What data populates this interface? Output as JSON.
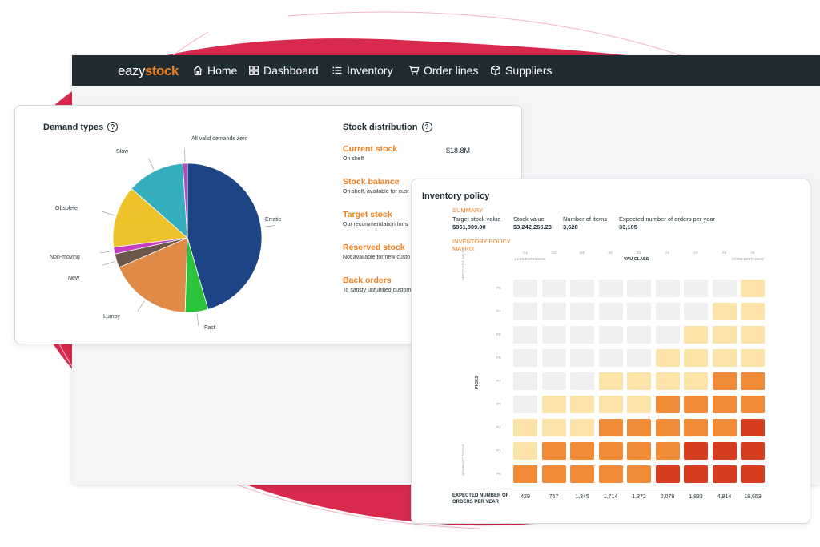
{
  "colors": {
    "brand_orange": "#f07f1f",
    "nav_bg": "#1f2d33",
    "blob_red": "#d8294f"
  },
  "logo": {
    "prefix": "eazy",
    "highlight": "stock"
  },
  "nav": [
    {
      "label": "Home",
      "icon": "home-icon"
    },
    {
      "label": "Dashboard",
      "icon": "grid-icon"
    },
    {
      "label": "Inventory",
      "icon": "list-icon"
    },
    {
      "label": "Order lines",
      "icon": "cart-icon"
    },
    {
      "label": "Suppliers",
      "icon": "box-icon"
    }
  ],
  "demand": {
    "title": "Demand types",
    "slices": [
      {
        "label": "Erratic",
        "value": 45.5,
        "color": "#1d4585"
      },
      {
        "label": "Fast",
        "value": 5.0,
        "color": "#2ac33a"
      },
      {
        "label": "Lumpy",
        "value": 18.0,
        "color": "#e08a47"
      },
      {
        "label": "New",
        "value": 3.0,
        "color": "#6b584a"
      },
      {
        "label": "Non-moving",
        "value": 1.5,
        "color": "#c43fbf"
      },
      {
        "label": "Obsolete",
        "value": 13.5,
        "color": "#edc22a"
      },
      {
        "label": "Slow",
        "value": 12.5,
        "color": "#35aebd"
      },
      {
        "label": "All valid demands zero",
        "value": 1.0,
        "color": "#b24ac8"
      }
    ]
  },
  "stock": {
    "title": "Stock distribution",
    "items": [
      {
        "title": "Current stock",
        "sub": "On shelf",
        "value": "$18.8M"
      },
      {
        "title": "Stock balance",
        "sub": "On shelf, available for cust",
        "value": ""
      },
      {
        "title": "Target stock",
        "sub": "Our recommendation for s",
        "value": ""
      },
      {
        "title": "Reserved stock",
        "sub": "Not available for new custo",
        "value": ""
      },
      {
        "title": "Back orders",
        "sub": "To satisfy unfulfilled custom",
        "value": ""
      }
    ]
  },
  "policy": {
    "title": "Inventory policy",
    "summary_label": "SUMMARY",
    "summary": [
      {
        "label": "Target stock value",
        "value": "$861,809.00"
      },
      {
        "label": "Stock value",
        "value": "$3,242,265.28"
      },
      {
        "label": "Number of items",
        "value": "3,628"
      },
      {
        "label": "Expected number of orders per year",
        "value": "33,105"
      }
    ],
    "matrix_label_1": "INVENTORY POLICY",
    "matrix_label_2": "MATRIX",
    "vau_label": "VAU CLASS",
    "less_expensive": "LESS EXPENSIVE",
    "more_expensive": "MORE EXPENSIVE",
    "columns": [
      "G1",
      "G2",
      "B3",
      "B0",
      "B1",
      "A4",
      "A3",
      "A5",
      "A6"
    ],
    "rows": [
      "P8",
      "P7",
      "P6",
      "P5",
      "P4",
      "P3",
      "P2",
      "P1",
      "P0"
    ],
    "picks_label": "PICKS",
    "frequent_sales": "FREQUENT SALES",
    "sporadic_sales": "SPORADIC SALES",
    "orders_label_1": "EXPECTED NUMBER OF",
    "orders_label_2": "ORDERS PER YEAR",
    "orders": [
      "429",
      "767",
      "1,345",
      "1,714",
      "1,372",
      "2,078",
      "1,833",
      "4,914",
      "18,653"
    ],
    "palette": [
      "#efefef",
      "#fbe3a9",
      "#f08a37",
      "#d63d1e"
    ],
    "levels": [
      [
        0,
        0,
        0,
        0,
        0,
        0,
        0,
        0,
        1
      ],
      [
        0,
        0,
        0,
        0,
        0,
        0,
        0,
        1,
        1
      ],
      [
        0,
        0,
        0,
        0,
        0,
        0,
        1,
        1,
        1
      ],
      [
        0,
        0,
        0,
        0,
        0,
        1,
        1,
        1,
        1
      ],
      [
        0,
        0,
        0,
        1,
        1,
        1,
        1,
        2,
        2
      ],
      [
        0,
        1,
        1,
        1,
        1,
        2,
        2,
        2,
        2
      ],
      [
        1,
        1,
        1,
        2,
        2,
        2,
        2,
        2,
        3
      ],
      [
        1,
        2,
        2,
        2,
        2,
        2,
        3,
        3,
        3
      ],
      [
        2,
        2,
        2,
        2,
        2,
        3,
        3,
        3,
        3
      ]
    ]
  }
}
